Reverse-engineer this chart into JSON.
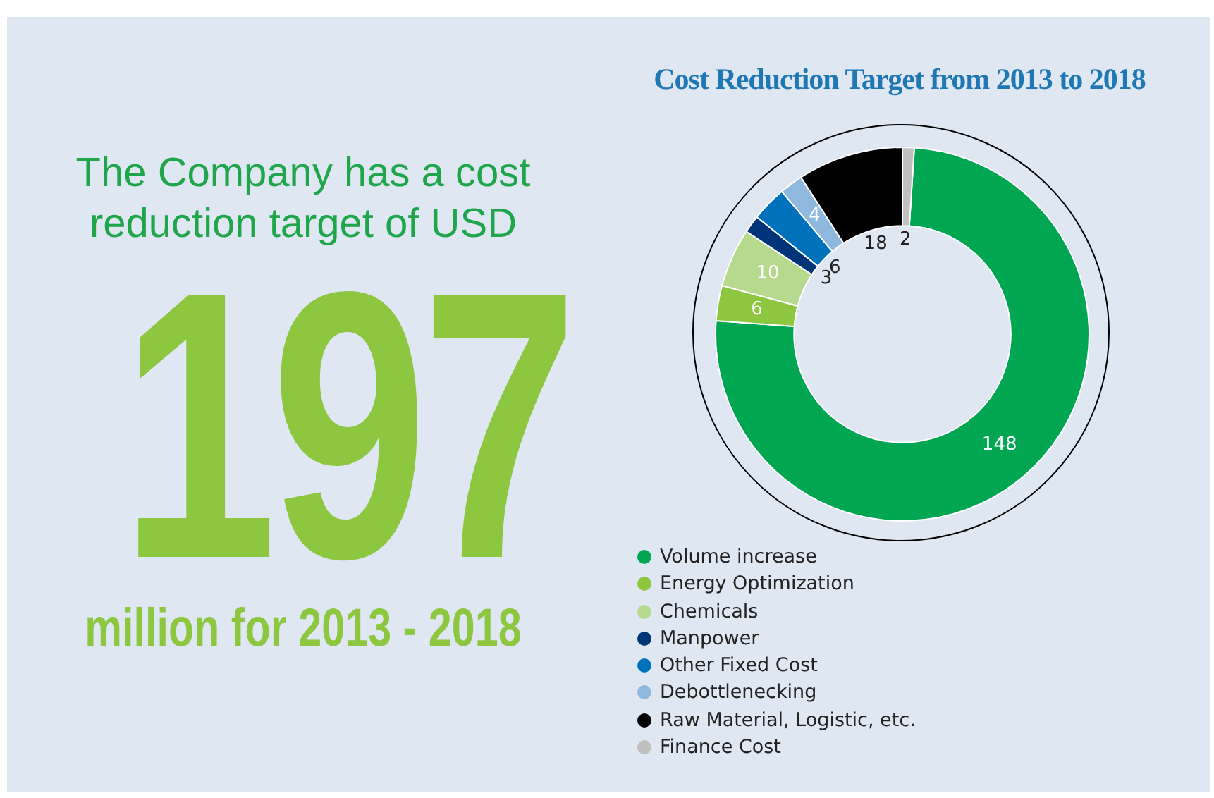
{
  "chart_data": {
    "type": "donut",
    "title": "Cost Reduction Target from 2013 to 2018",
    "categories": [
      "Volume increase",
      "Energy Optimization",
      "Chemicals",
      "Manpower",
      "Other Fixed Cost",
      "Debottlenecking",
      "Raw Material, Logistic, etc.",
      "Finance Cost"
    ],
    "values": [
      148,
      6,
      10,
      3,
      6,
      4,
      18,
      2
    ],
    "colors": [
      "#00a651",
      "#8dc63f",
      "#b5d98d",
      "#003478",
      "#0072bc",
      "#8fb8de",
      "#000000",
      "#c0c0c0"
    ],
    "data_labels": true,
    "legend": "bottom",
    "annotations": [
      "The Company has a cost reduction target of USD",
      "197",
      "million for 2013 - 2018"
    ]
  }
}
